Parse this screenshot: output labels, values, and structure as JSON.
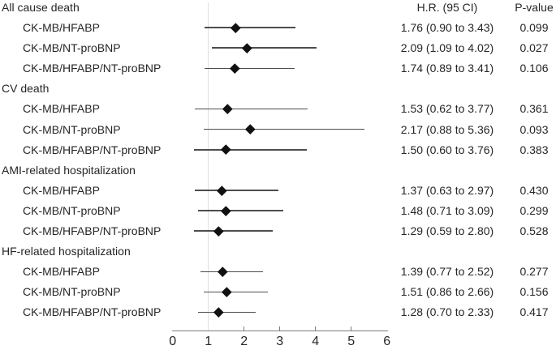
{
  "chart_data": {
    "type": "scatter",
    "subtype": "forest-plot",
    "title": "",
    "xlabel": "",
    "xlim": [
      0,
      6
    ],
    "grid": false,
    "legend_position": "none",
    "x_tick_labels": [
      "0",
      "1",
      "2",
      "3",
      "4",
      "5",
      "6"
    ],
    "x_tick_values": [
      0,
      1,
      2,
      3,
      4,
      5,
      6
    ],
    "tick_marks": [
      2,
      3,
      4,
      5
    ],
    "reference_line_x": 1,
    "columns": {
      "hr": "H.R. (95 CI)",
      "p": "P-value"
    },
    "rows": [
      {
        "type": "group",
        "label": "All cause death"
      },
      {
        "type": "item",
        "label": "CK-MB/HFABP",
        "hr": 1.76,
        "ci_low": 0.9,
        "ci_high": 3.43,
        "hr_text": "1.76 (0.90 to 3.43)",
        "p_text": "0.099"
      },
      {
        "type": "item",
        "label": "CK-MB/NT-proBNP",
        "hr": 2.09,
        "ci_low": 1.09,
        "ci_high": 4.02,
        "hr_text": "2.09 (1.09 to 4.02)",
        "p_text": "0.027"
      },
      {
        "type": "item",
        "label": "CK-MB/HFABP/NT-proBNP",
        "hr": 1.74,
        "ci_low": 0.89,
        "ci_high": 3.41,
        "hr_text": "1.74 (0.89 to 3.41)",
        "p_text": "0.106"
      },
      {
        "type": "group",
        "label": "CV death"
      },
      {
        "type": "item",
        "label": "CK-MB/HFABP",
        "hr": 1.53,
        "ci_low": 0.62,
        "ci_high": 3.77,
        "hr_text": "1.53 (0.62 to 3.77)",
        "p_text": "0.361"
      },
      {
        "type": "item",
        "label": "CK-MB/NT-proBNP",
        "hr": 2.17,
        "ci_low": 0.88,
        "ci_high": 5.36,
        "hr_text": "2.17 (0.88 to 5.36)",
        "p_text": "0.093"
      },
      {
        "type": "item",
        "label": "CK-MB/HFABP/NT-proBNP",
        "hr": 1.5,
        "ci_low": 0.6,
        "ci_high": 3.76,
        "hr_text": "1.50 (0.60 to 3.76)",
        "p_text": "0.383"
      },
      {
        "type": "group",
        "label": "AMI-related hospitalization"
      },
      {
        "type": "item",
        "label": "CK-MB/HFABP",
        "hr": 1.37,
        "ci_low": 0.63,
        "ci_high": 2.97,
        "hr_text": "1.37 (0.63 to 2.97)",
        "p_text": "0.430"
      },
      {
        "type": "item",
        "label": "CK-MB/NT-proBNP",
        "hr": 1.48,
        "ci_low": 0.71,
        "ci_high": 3.09,
        "hr_text": "1.48 (0.71 to 3.09)",
        "p_text": "0.299"
      },
      {
        "type": "item",
        "label": "CK-MB/HFABP/NT-proBNP",
        "hr": 1.29,
        "ci_low": 0.59,
        "ci_high": 2.8,
        "hr_text": "1.29 (0.59 to 2.80)",
        "p_text": "0.528"
      },
      {
        "type": "group",
        "label": "HF-related hospitalization"
      },
      {
        "type": "item",
        "label": "CK-MB/HFABP",
        "hr": 1.39,
        "ci_low": 0.77,
        "ci_high": 2.52,
        "hr_text": "1.39 (0.77 to 2.52)",
        "p_text": "0.277"
      },
      {
        "type": "item",
        "label": "CK-MB/NT-proBNP",
        "hr": 1.51,
        "ci_low": 0.86,
        "ci_high": 2.66,
        "hr_text": "1.51 (0.86 to 2.66)",
        "p_text": "0.156"
      },
      {
        "type": "item",
        "label": "CK-MB/HFABP/NT-proBNP",
        "hr": 1.28,
        "ci_low": 0.7,
        "ci_high": 2.33,
        "hr_text": "1.28 (0.70 to 2.33)",
        "p_text": "0.417"
      }
    ],
    "colors": {
      "text": "#262626",
      "ci_line": "#4d4d4d",
      "marker": "#111111",
      "axis": "#7d7d7d",
      "reference_line": "#e0e0e0",
      "background": "#ffffff"
    }
  }
}
